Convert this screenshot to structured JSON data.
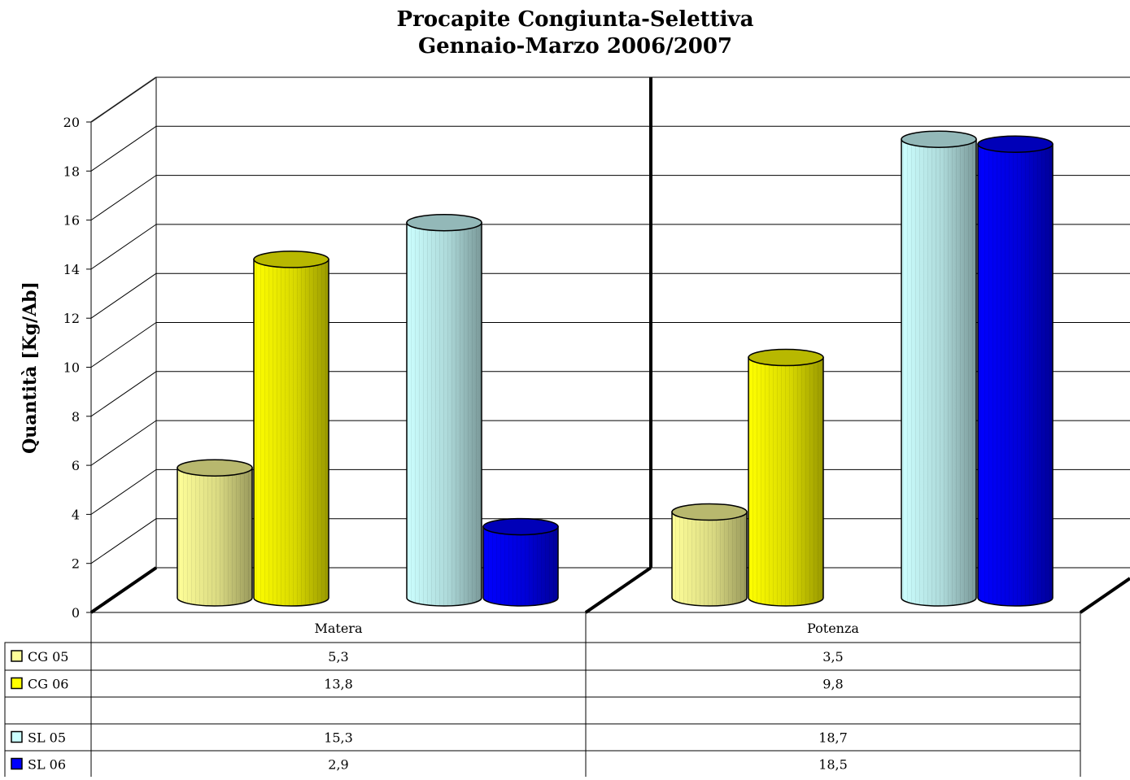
{
  "chart_data": {
    "type": "bar",
    "title": [
      "Procapite Congiunta-Selettiva",
      "Gennaio-Marzo 2006/2007"
    ],
    "ylabel": "Quantità [Kg/Ab]",
    "ylim": [
      0,
      20
    ],
    "yticks": [
      "0",
      "2",
      "4",
      "6",
      "8",
      "10",
      "12",
      "14",
      "16",
      "18",
      "20"
    ],
    "grid": true,
    "categories": [
      "Matera",
      "Potenza"
    ],
    "series": [
      {
        "name": "CG 05",
        "values": [
          5.3,
          3.5
        ],
        "labels": [
          "5,3",
          "3,5"
        ],
        "color": "#ffff99"
      },
      {
        "name": "CG 06",
        "values": [
          13.8,
          9.8
        ],
        "labels": [
          "13,8",
          "9,8"
        ],
        "color": "#ffff00"
      },
      {
        "name": "",
        "values": [
          null,
          null
        ],
        "labels": [
          "",
          ""
        ],
        "color": ""
      },
      {
        "name": "SL 05",
        "values": [
          15.3,
          18.7
        ],
        "labels": [
          "15,3",
          "18,7"
        ],
        "color": "#ccffff"
      },
      {
        "name": "SL 06",
        "values": [
          2.9,
          18.5
        ],
        "labels": [
          "2,9",
          "18,5"
        ],
        "color": "#0000ff"
      }
    ]
  }
}
